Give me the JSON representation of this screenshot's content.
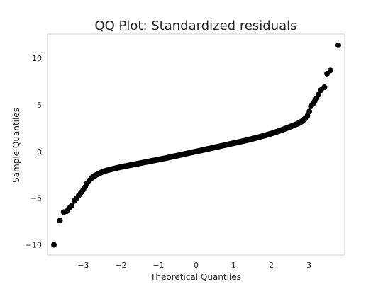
{
  "chart_data": {
    "type": "scatter",
    "title": "QQ Plot: Standardized residuals",
    "xlabel": "Theoretical Quantiles",
    "ylabel": "Sample Quantiles",
    "xlim": [
      -3.95,
      3.95
    ],
    "ylim": [
      -11.1,
      12.6
    ],
    "xticks": [
      -3,
      -2,
      -1,
      0,
      1,
      2,
      3
    ],
    "xtick_labels": [
      "−3",
      "−2",
      "−1",
      "0",
      "1",
      "2",
      "3"
    ],
    "yticks": [
      -10,
      -5,
      0,
      5,
      10
    ],
    "ytick_labels": [
      "−10",
      "−5",
      "0",
      "5",
      "10"
    ],
    "grid": false,
    "marker_color": "#000000",
    "points": [
      [
        -3.78,
        -10.0
      ],
      [
        -3.62,
        -7.4
      ],
      [
        -3.52,
        -6.5
      ],
      [
        -3.44,
        -6.4
      ],
      [
        -3.37,
        -6.0
      ],
      [
        -3.31,
        -5.8
      ],
      [
        -3.24,
        -5.3
      ],
      [
        -3.18,
        -5.0
      ],
      [
        -3.12,
        -4.7
      ],
      [
        -3.06,
        -4.4
      ],
      [
        -3.0,
        -4.1
      ],
      [
        -2.95,
        -3.8
      ],
      [
        -2.9,
        -3.4
      ],
      [
        -2.84,
        -3.1
      ],
      [
        -2.78,
        -2.85
      ],
      [
        -2.7,
        -2.6
      ],
      [
        -2.6,
        -2.4
      ],
      [
        -2.5,
        -2.2
      ],
      [
        -2.4,
        -2.05
      ],
      [
        -2.3,
        -1.95
      ],
      [
        -2.2,
        -1.85
      ],
      [
        -2.1,
        -1.75
      ],
      [
        -2.0,
        -1.66
      ],
      [
        -1.9,
        -1.58
      ],
      [
        -1.8,
        -1.5
      ],
      [
        -1.7,
        -1.42
      ],
      [
        -1.6,
        -1.34
      ],
      [
        -1.5,
        -1.26
      ],
      [
        -1.4,
        -1.18
      ],
      [
        -1.3,
        -1.1
      ],
      [
        -1.2,
        -1.02
      ],
      [
        -1.1,
        -0.94
      ],
      [
        -1.0,
        -0.86
      ],
      [
        -0.9,
        -0.78
      ],
      [
        -0.8,
        -0.7
      ],
      [
        -0.7,
        -0.61
      ],
      [
        -0.6,
        -0.52
      ],
      [
        -0.5,
        -0.44
      ],
      [
        -0.4,
        -0.35
      ],
      [
        -0.3,
        -0.26
      ],
      [
        -0.2,
        -0.17
      ],
      [
        -0.1,
        -0.08
      ],
      [
        0.0,
        0.0
      ],
      [
        0.1,
        0.09
      ],
      [
        0.2,
        0.18
      ],
      [
        0.3,
        0.27
      ],
      [
        0.4,
        0.36
      ],
      [
        0.5,
        0.45
      ],
      [
        0.6,
        0.54
      ],
      [
        0.7,
        0.63
      ],
      [
        0.8,
        0.72
      ],
      [
        0.9,
        0.81
      ],
      [
        1.0,
        0.9
      ],
      [
        1.1,
        0.99
      ],
      [
        1.2,
        1.08
      ],
      [
        1.3,
        1.17
      ],
      [
        1.4,
        1.27
      ],
      [
        1.5,
        1.37
      ],
      [
        1.6,
        1.47
      ],
      [
        1.7,
        1.58
      ],
      [
        1.8,
        1.69
      ],
      [
        1.9,
        1.81
      ],
      [
        2.0,
        1.93
      ],
      [
        2.1,
        2.06
      ],
      [
        2.2,
        2.2
      ],
      [
        2.3,
        2.35
      ],
      [
        2.4,
        2.5
      ],
      [
        2.5,
        2.66
      ],
      [
        2.6,
        2.82
      ],
      [
        2.68,
        2.96
      ],
      [
        2.76,
        3.1
      ],
      [
        2.83,
        3.3
      ],
      [
        2.9,
        3.55
      ],
      [
        2.96,
        3.85
      ],
      [
        3.01,
        4.3
      ],
      [
        3.05,
        4.85
      ],
      [
        3.1,
        5.1
      ],
      [
        3.15,
        5.4
      ],
      [
        3.2,
        5.7
      ],
      [
        3.25,
        6.1
      ],
      [
        3.32,
        6.6
      ],
      [
        3.41,
        6.9
      ],
      [
        3.48,
        8.35
      ],
      [
        3.57,
        8.7
      ],
      [
        3.78,
        11.4
      ]
    ]
  }
}
